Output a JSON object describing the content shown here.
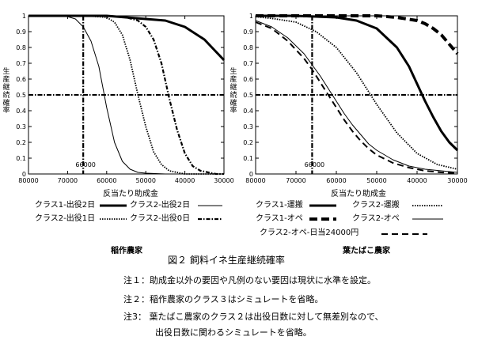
{
  "figure": {
    "title": "図２ 飼料イネ生産継続確率",
    "notes": [
      "注１：助成金以外の要因や凡例のない要因は現状に水準を設定。",
      "注２：稲作農家のクラス３はシミュレートを省略。",
      "注3：  葉たばこ農家のクラス２は出役日数に対して無差別なので、",
      "出役日数に関わるシミュレートを省略。"
    ]
  },
  "chart_data": [
    {
      "type": "line",
      "caption": "稲作農家",
      "xlabel": "反当たり助成金",
      "ylabel": "生産継続確率",
      "xlim": [
        80000,
        30000
      ],
      "ylim": [
        0,
        1
      ],
      "x_ticks": [
        80000,
        70000,
        60000,
        50000,
        40000,
        30000
      ],
      "y_ticks": [
        0,
        0.1,
        0.2,
        0.3,
        0.4,
        0.5,
        0.6,
        0.7,
        0.8,
        0.9,
        1
      ],
      "y_tick_labels": [
        "0",
        "0.1",
        "0.2",
        "0.3",
        "0.4",
        "0.5",
        "0.6",
        "0.7",
        "0.8",
        "0.9",
        "1"
      ],
      "reference_x": 66000,
      "reference_x_label": "66000",
      "reference_y": 0.5,
      "legend": [
        {
          "label": "クラス1-出役2日",
          "style": "thick"
        },
        {
          "label": "クラス2-出役2日",
          "style": "thin"
        },
        {
          "label": "クラス2-出役1日",
          "style": "dotted"
        },
        {
          "label": "クラス2-出役0日",
          "style": "dashdot"
        }
      ],
      "series": [
        {
          "name": "クラス1-出役2日",
          "style": "thick",
          "x": [
            80000,
            75000,
            70000,
            65000,
            60000,
            55000,
            50000,
            45000,
            40000,
            35000,
            30000
          ],
          "y": [
            1,
            1,
            1,
            1,
            1,
            0.99,
            0.98,
            0.97,
            0.93,
            0.85,
            0.72
          ]
        },
        {
          "name": "クラス2-出役2日",
          "style": "thin",
          "x": [
            80000,
            75000,
            70000,
            68000,
            66000,
            64000,
            62000,
            60000,
            58000,
            56000,
            54000,
            52000,
            50000,
            45000,
            40000,
            30000
          ],
          "y": [
            1,
            1,
            0.995,
            0.98,
            0.93,
            0.84,
            0.68,
            0.42,
            0.2,
            0.08,
            0.03,
            0.01,
            0.005,
            0,
            0,
            0
          ]
        },
        {
          "name": "クラス2-出役1日",
          "style": "dotted",
          "x": [
            80000,
            70000,
            65000,
            60000,
            58000,
            56000,
            54000,
            52000,
            50000,
            48000,
            46000,
            44000,
            42000,
            40000,
            35000,
            30000
          ],
          "y": [
            1,
            1,
            1,
            0.99,
            0.96,
            0.88,
            0.72,
            0.5,
            0.3,
            0.14,
            0.06,
            0.02,
            0.01,
            0,
            0,
            0
          ]
        },
        {
          "name": "クラス2-出役0日",
          "style": "dashdot",
          "x": [
            80000,
            70000,
            60000,
            55000,
            52000,
            50000,
            48000,
            46000,
            44000,
            42000,
            40000,
            38000,
            36000,
            34000,
            32000,
            30000
          ],
          "y": [
            1,
            1,
            1,
            0.99,
            0.97,
            0.93,
            0.85,
            0.7,
            0.48,
            0.28,
            0.13,
            0.05,
            0.02,
            0.01,
            0,
            0
          ]
        }
      ]
    },
    {
      "type": "line",
      "caption": "葉たばこ農家",
      "xlabel": "反当たり助成金",
      "ylabel": "生産継続確率",
      "xlim": [
        80000,
        30000
      ],
      "ylim": [
        0,
        1
      ],
      "x_ticks": [
        80000,
        70000,
        60000,
        50000,
        40000,
        30000
      ],
      "y_ticks": [
        0,
        0.1,
        0.2,
        0.3,
        0.4,
        0.5,
        0.6,
        0.7,
        0.8,
        0.9,
        1
      ],
      "y_tick_labels": [
        "0",
        "0.1",
        "0.2",
        "0.3",
        "0.4",
        "0.5",
        "0.6",
        "0.7",
        "0.8",
        "0.9",
        "1"
      ],
      "reference_x": 66000,
      "reference_x_label": "66000",
      "reference_y": 0.5,
      "legend": [
        {
          "label": "クラス1-運搬",
          "style": "thick"
        },
        {
          "label": "クラス2-運搬",
          "style": "dotted"
        },
        {
          "label": "クラス1-オペ",
          "style": "thickdash"
        },
        {
          "label": "クラス2-オペ",
          "style": "thin"
        },
        {
          "label": "クラス2-オペ-日当24000円",
          "style": "dash"
        }
      ],
      "series": [
        {
          "name": "クラス1-運搬",
          "style": "thick",
          "x": [
            80000,
            70000,
            60000,
            55000,
            50000,
            45000,
            42000,
            40000,
            38000,
            36000,
            34000,
            32000,
            30000
          ],
          "y": [
            1,
            1,
            0.99,
            0.97,
            0.92,
            0.8,
            0.68,
            0.57,
            0.46,
            0.36,
            0.27,
            0.2,
            0.15
          ]
        },
        {
          "name": "クラス2-運搬",
          "style": "dotted",
          "x": [
            80000,
            75000,
            70000,
            65000,
            60000,
            55000,
            50000,
            45000,
            40000,
            35000,
            30000
          ],
          "y": [
            0.995,
            0.98,
            0.96,
            0.9,
            0.8,
            0.64,
            0.44,
            0.26,
            0.13,
            0.06,
            0.03
          ]
        },
        {
          "name": "クラス1-オペ",
          "style": "thickdash",
          "x": [
            80000,
            70000,
            60000,
            50000,
            45000,
            40000,
            38000,
            36000,
            34000,
            32000,
            30000
          ],
          "y": [
            1,
            1,
            1,
            1,
            0.99,
            0.97,
            0.95,
            0.92,
            0.88,
            0.82,
            0.76
          ]
        },
        {
          "name": "クラス2-オペ",
          "style": "thin",
          "x": [
            80000,
            76000,
            72000,
            68000,
            66000,
            64000,
            62000,
            60000,
            58000,
            56000,
            54000,
            52000,
            50000,
            46000,
            42000,
            38000,
            34000,
            30000
          ],
          "y": [
            0.97,
            0.93,
            0.86,
            0.76,
            0.69,
            0.62,
            0.54,
            0.46,
            0.38,
            0.31,
            0.25,
            0.19,
            0.15,
            0.09,
            0.05,
            0.03,
            0.02,
            0.01
          ]
        },
        {
          "name": "クラス2-オペ-日当24000円",
          "style": "dash",
          "x": [
            80000,
            76000,
            72000,
            68000,
            66000,
            64000,
            62000,
            60000,
            58000,
            56000,
            54000,
            52000,
            50000,
            46000,
            42000,
            38000,
            34000,
            30000
          ],
          "y": [
            0.96,
            0.92,
            0.84,
            0.73,
            0.66,
            0.58,
            0.5,
            0.42,
            0.34,
            0.27,
            0.21,
            0.16,
            0.12,
            0.07,
            0.04,
            0.02,
            0.01,
            0.005
          ]
        }
      ]
    }
  ]
}
